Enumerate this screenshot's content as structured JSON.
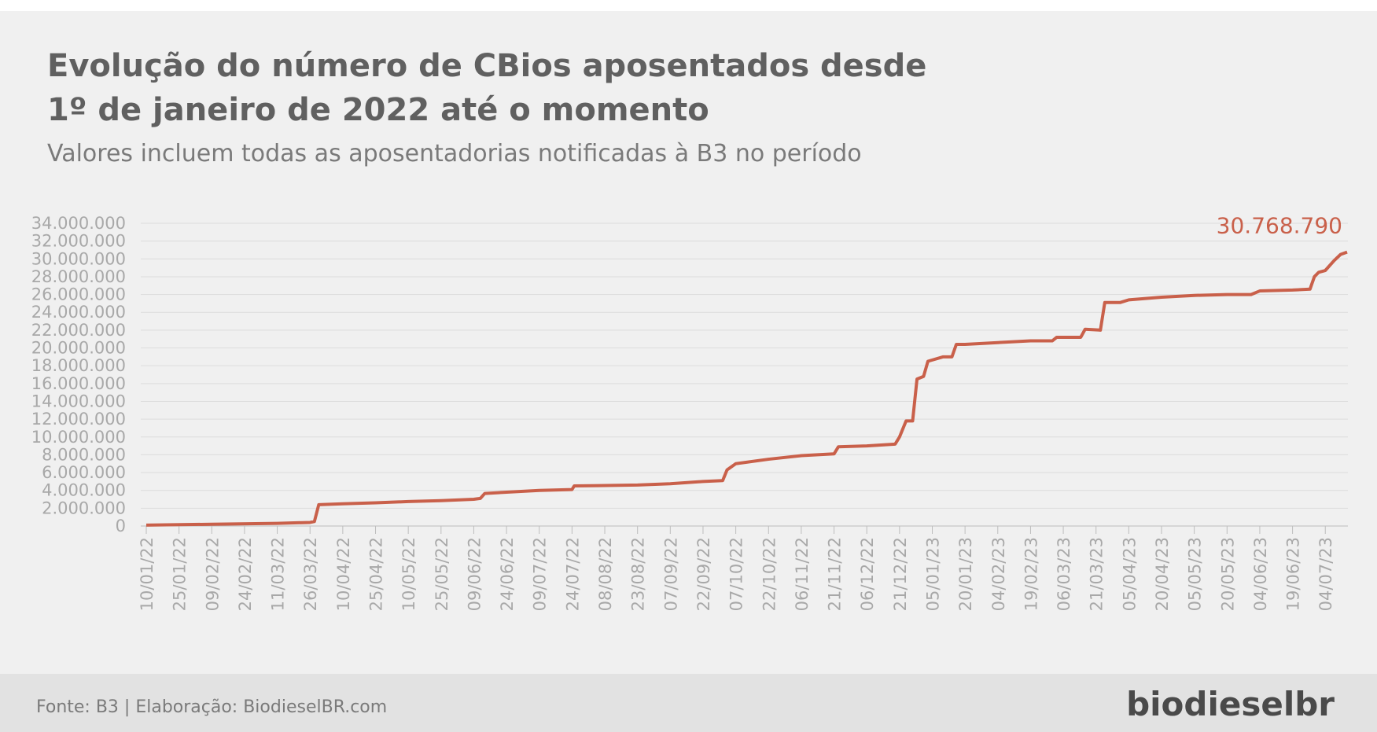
{
  "chart_data": {
    "type": "line",
    "title": "Evolução do número de CBios aposentados desde",
    "title_line2": "1º de janeiro de 2022 até o momento",
    "subtitle": "Valores incluem todas as aposentadorias notificadas à B3 no período",
    "source": "Fonte: B3 | Elaboração: BiodieselBR.com",
    "brand": "biodieselbr",
    "color": "#c9604a",
    "grid": true,
    "x": [
      "10/01/22",
      "09/02/22",
      "11/03/22",
      "26/03/22",
      "28/03/22",
      "30/03/22",
      "10/04/22",
      "25/04/22",
      "10/05/22",
      "25/05/22",
      "09/06/22",
      "12/06/22",
      "14/06/22",
      "24/06/22",
      "09/07/22",
      "24/07/22",
      "25/07/22",
      "23/08/22",
      "07/09/22",
      "22/09/22",
      "01/10/22",
      "03/10/22",
      "07/10/22",
      "22/10/22",
      "06/11/22",
      "21/11/22",
      "23/11/22",
      "06/12/22",
      "19/12/22",
      "21/12/22",
      "24/12/22",
      "27/12/22",
      "29/12/22",
      "01/01/23",
      "03/01/23",
      "10/01/23",
      "14/01/23",
      "16/01/23",
      "20/01/23",
      "04/02/23",
      "19/02/23",
      "01/03/23",
      "03/03/23",
      "14/03/23",
      "16/03/23",
      "23/03/23",
      "25/03/23",
      "01/04/23",
      "05/04/23",
      "20/04/23",
      "05/05/23",
      "20/05/23",
      "31/05/23",
      "04/06/23",
      "19/06/23",
      "27/06/23",
      "29/06/23",
      "01/07/23",
      "04/07/23",
      "08/07/23",
      "11/07/23",
      "14/07/23"
    ],
    "values": [
      100000,
      200000,
      300000,
      400000,
      500000,
      2400000,
      2500000,
      2600000,
      2750000,
      2850000,
      3000000,
      3100000,
      3650000,
      3800000,
      4000000,
      4100000,
      4500000,
      4600000,
      4750000,
      5000000,
      5100000,
      6300000,
      7000000,
      7500000,
      7900000,
      8100000,
      8900000,
      9000000,
      9200000,
      10000000,
      11800000,
      11800000,
      16500000,
      16800000,
      18500000,
      19000000,
      19000000,
      20400000,
      20400000,
      20600000,
      20800000,
      20800000,
      21200000,
      21200000,
      22100000,
      22000000,
      25100000,
      25100000,
      25400000,
      25700000,
      25900000,
      26000000,
      26000000,
      26400000,
      26500000,
      26600000,
      28000000,
      28500000,
      28700000,
      29800000,
      30500000,
      30768790
    ],
    "value_labels": [
      null,
      null,
      null,
      null,
      null,
      null,
      null,
      null,
      null,
      null,
      null,
      null,
      null,
      null,
      null,
      null,
      null,
      null,
      null,
      null,
      null,
      null,
      null,
      null,
      null,
      null,
      null,
      null,
      null,
      null,
      null,
      null,
      null,
      null,
      null,
      null,
      null,
      null,
      null,
      null,
      null,
      null,
      null,
      null,
      null,
      null,
      null,
      null,
      null,
      null,
      null,
      null,
      null,
      null,
      null,
      null,
      null,
      null,
      null,
      null,
      null,
      "30.768.790"
    ],
    "xlim": [
      "10/01/22",
      "14/07/23"
    ],
    "xticks": [
      "10/01/22",
      "25/01/22",
      "09/02/22",
      "24/02/22",
      "11/03/22",
      "26/03/22",
      "10/04/22",
      "25/04/22",
      "10/05/22",
      "25/05/22",
      "09/06/22",
      "24/06/22",
      "09/07/22",
      "24/07/22",
      "08/08/22",
      "23/08/22",
      "07/09/22",
      "22/09/22",
      "07/10/22",
      "22/10/22",
      "06/11/22",
      "21/11/22",
      "06/12/22",
      "21/12/22",
      "05/01/23",
      "20/01/23",
      "04/02/23",
      "19/02/23",
      "06/03/23",
      "21/03/23",
      "05/04/23",
      "20/04/23",
      "05/05/23",
      "20/05/23",
      "04/06/23",
      "19/06/23",
      "04/07/23"
    ],
    "ylim": [
      0,
      34000000
    ],
    "yticks": [
      0,
      {
        "value": 2000000,
        "label": "2.000.000"
      },
      {
        "value": 4000000,
        "label": "4.000.000"
      },
      {
        "value": 6000000,
        "label": "6.000.000"
      },
      {
        "value": 8000000,
        "label": "8.000.000"
      },
      {
        "value": 10000000,
        "label": "10.000.000"
      },
      {
        "value": 12000000,
        "label": "12.000.000"
      },
      {
        "value": 14000000,
        "label": "14.000.000"
      },
      {
        "value": 16000000,
        "label": "16.000.000"
      },
      {
        "value": 18000000,
        "label": "18.000.000"
      },
      {
        "value": 20000000,
        "label": "20.000.000"
      },
      {
        "value": 22000000,
        "label": "22.000.000"
      },
      {
        "value": 24000000,
        "label": "24.000.000"
      },
      {
        "value": 26000000,
        "label": "26.000.000"
      },
      {
        "value": 28000000,
        "label": "28.000.000"
      },
      {
        "value": 30000000,
        "label": "30.000.000"
      },
      {
        "value": 32000000,
        "label": "32.000.000"
      },
      {
        "value": 34000000,
        "label": "34.000.000"
      }
    ]
  }
}
